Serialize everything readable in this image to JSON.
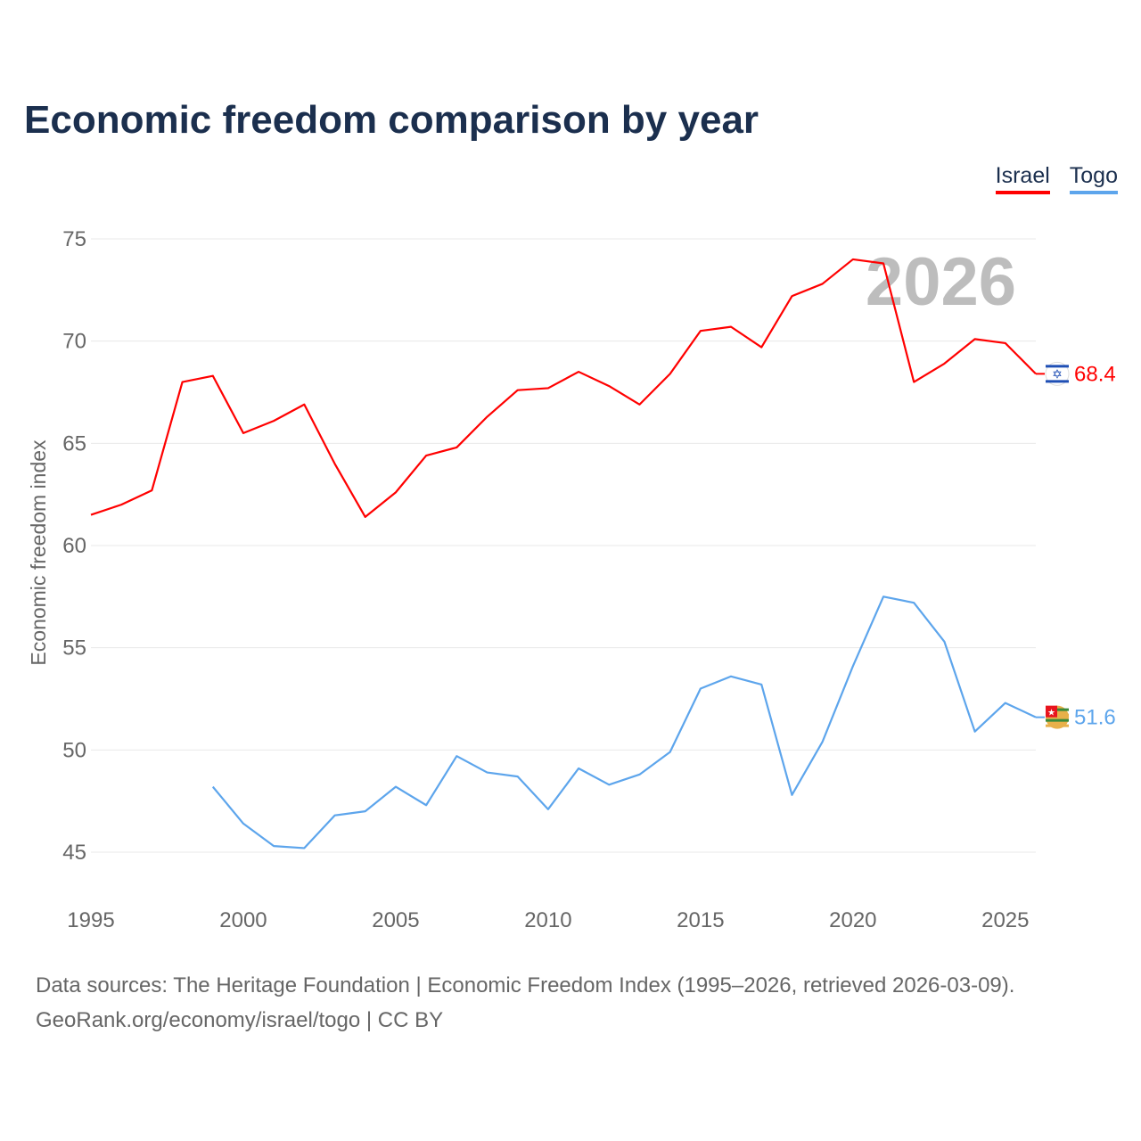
{
  "chart_data": {
    "type": "line",
    "title": "Economic freedom comparison by year",
    "ylabel": "Economic freedom index",
    "xlabel": "",
    "xlim": [
      1995,
      2026
    ],
    "ylim": [
      45,
      75
    ],
    "x_ticks": [
      1995,
      2000,
      2005,
      2010,
      2015,
      2020,
      2025
    ],
    "y_ticks": [
      45,
      50,
      55,
      60,
      65,
      70,
      75
    ],
    "grid": true,
    "legend_position": "top-right",
    "year_watermark": "2026",
    "series": [
      {
        "name": "Israel",
        "color": "#ff0000",
        "end_label": "68.4",
        "x": [
          1995,
          1996,
          1997,
          1998,
          1999,
          2000,
          2001,
          2002,
          2003,
          2004,
          2005,
          2006,
          2007,
          2008,
          2009,
          2010,
          2011,
          2012,
          2013,
          2014,
          2015,
          2016,
          2017,
          2018,
          2019,
          2020,
          2021,
          2022,
          2023,
          2024,
          2025,
          2026
        ],
        "values": [
          61.5,
          62.0,
          62.7,
          68.0,
          68.3,
          65.5,
          66.1,
          66.9,
          64.0,
          61.4,
          62.6,
          64.4,
          64.8,
          66.3,
          67.6,
          67.7,
          68.5,
          67.8,
          66.9,
          68.4,
          70.5,
          70.7,
          69.7,
          72.2,
          72.8,
          74.0,
          73.8,
          68.0,
          68.9,
          70.1,
          69.9,
          68.4
        ]
      },
      {
        "name": "Togo",
        "color": "#5da5ec",
        "end_label": "51.6",
        "x": [
          1999,
          2000,
          2001,
          2002,
          2003,
          2004,
          2005,
          2006,
          2007,
          2008,
          2009,
          2010,
          2011,
          2012,
          2013,
          2014,
          2015,
          2016,
          2017,
          2018,
          2019,
          2020,
          2021,
          2022,
          2023,
          2024,
          2025,
          2026
        ],
        "values": [
          48.2,
          46.4,
          45.3,
          45.2,
          46.8,
          47.0,
          48.2,
          47.3,
          49.7,
          48.9,
          48.7,
          47.1,
          49.1,
          48.3,
          48.8,
          49.9,
          53.0,
          53.6,
          53.2,
          47.8,
          50.4,
          54.1,
          57.5,
          57.2,
          55.3,
          50.9,
          52.3,
          51.6
        ]
      }
    ]
  },
  "source": {
    "line1": "Data sources: The Heritage Foundation | Economic Freedom Index (1995–2026, retrieved 2026-03-09).",
    "line2": "GeoRank.org/economy/israel/togo | CC BY"
  }
}
